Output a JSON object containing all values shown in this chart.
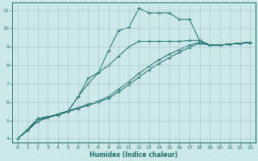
{
  "xlabel": "Humidex (Indice chaleur)",
  "background_color": "#cce8e8",
  "grid_color": "#aacccc",
  "line_color": "#1a6b6b",
  "xlim": [
    -0.5,
    23.5
  ],
  "ylim": [
    3.8,
    11.4
  ],
  "x_ticks": [
    0,
    1,
    2,
    3,
    4,
    5,
    6,
    7,
    8,
    9,
    10,
    11,
    12,
    13,
    14,
    15,
    16,
    17,
    18,
    19,
    20,
    21,
    22,
    23
  ],
  "y_ticks": [
    4,
    5,
    6,
    7,
    8,
    9,
    10,
    11
  ],
  "series": [
    {
      "x": [
        0,
        1,
        2,
        3,
        4,
        5,
        6,
        7,
        8,
        9,
        10,
        11,
        12,
        13,
        14,
        15,
        16,
        17,
        18,
        19,
        20,
        21,
        22,
        23
      ],
      "y": [
        4.0,
        4.5,
        5.1,
        5.2,
        5.3,
        5.5,
        6.3,
        7.0,
        7.6,
        8.8,
        9.9,
        10.05,
        11.1,
        10.85,
        10.85,
        10.85,
        10.5,
        10.5,
        9.35,
        9.1,
        9.1,
        9.15,
        9.2,
        9.25
      ]
    },
    {
      "x": [
        0,
        1,
        2,
        3,
        4,
        5,
        6,
        7,
        8,
        9,
        10,
        11,
        12,
        13,
        14,
        15,
        16,
        17,
        18,
        19,
        20,
        21,
        22,
        23
      ],
      "y": [
        4.0,
        4.5,
        5.1,
        5.2,
        5.3,
        5.5,
        6.3,
        7.3,
        7.6,
        8.0,
        8.5,
        9.0,
        9.3,
        9.3,
        9.3,
        9.3,
        9.3,
        9.35,
        9.35,
        9.1,
        9.1,
        9.15,
        9.2,
        9.25
      ]
    },
    {
      "x": [
        0,
        1,
        2,
        3,
        4,
        5,
        6,
        7,
        8,
        9,
        10,
        11,
        12,
        13,
        14,
        15,
        16,
        17,
        18,
        19,
        20,
        21,
        22,
        23
      ],
      "y": [
        4.0,
        4.48,
        5.0,
        5.18,
        5.35,
        5.52,
        5.7,
        5.88,
        6.05,
        6.3,
        6.7,
        7.1,
        7.55,
        7.95,
        8.3,
        8.6,
        8.85,
        9.1,
        9.25,
        9.1,
        9.1,
        9.15,
        9.2,
        9.25
      ]
    },
    {
      "x": [
        0,
        1,
        2,
        3,
        4,
        5,
        6,
        7,
        8,
        9,
        10,
        11,
        12,
        13,
        14,
        15,
        16,
        17,
        18,
        19,
        20,
        21,
        22,
        23
      ],
      "y": [
        4.0,
        4.45,
        4.95,
        5.15,
        5.3,
        5.48,
        5.65,
        5.82,
        6.0,
        6.2,
        6.55,
        6.95,
        7.35,
        7.75,
        8.1,
        8.42,
        8.7,
        8.98,
        9.2,
        9.1,
        9.1,
        9.15,
        9.2,
        9.25
      ]
    }
  ]
}
